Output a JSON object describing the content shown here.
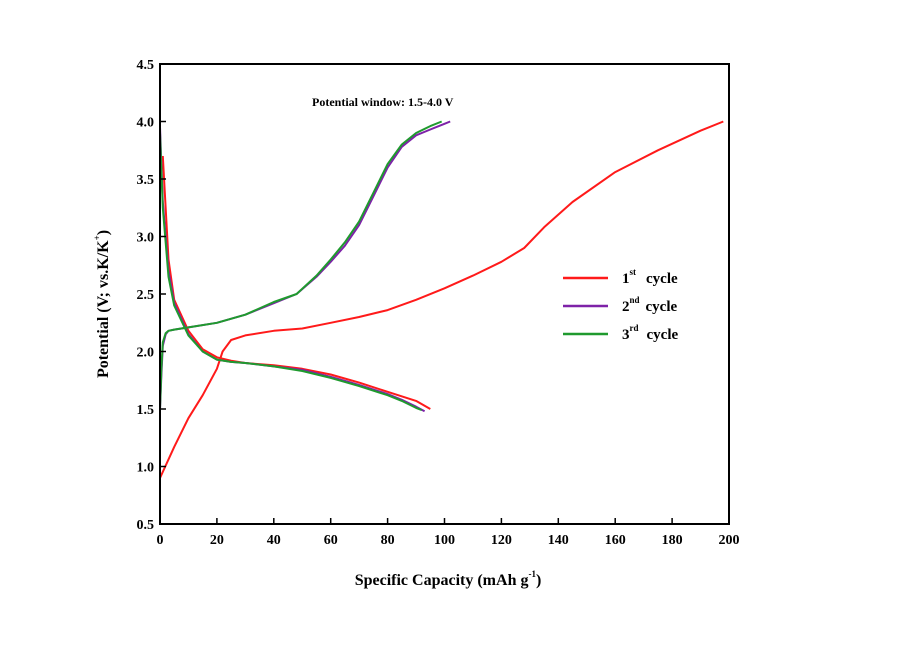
{
  "chart_data": {
    "type": "line",
    "xlabel": "Specific Capacity (mAh g",
    "xlabel_sup": "-1",
    "xlabel_tail": ")",
    "ylabel": "Potential (V; vs.K/K",
    "ylabel_sup": "+",
    "ylabel_tail": ")",
    "annotation": "Potential window: 1.5-4.0 V",
    "xlim": [
      0,
      200
    ],
    "ylim": [
      0.5,
      4.5
    ],
    "xticks": [
      0,
      20,
      40,
      60,
      80,
      100,
      120,
      140,
      160,
      180,
      200
    ],
    "xtick_labels": [
      "0",
      "20",
      "40",
      "60",
      "80",
      "100",
      "120",
      "140",
      "160",
      "180",
      "200"
    ],
    "yticks": [
      0.5,
      1.0,
      1.5,
      2.0,
      2.5,
      3.0,
      3.5,
      4.0,
      4.5
    ],
    "ytick_labels": [
      "0.5",
      "1.0",
      "1.5",
      "2.0",
      "2.5",
      "3.0",
      "3.5",
      "4.0",
      "4.5"
    ],
    "legend_position": "right",
    "series": [
      {
        "name": "1st cycle",
        "legend_main": "1",
        "legend_sup": "st",
        "legend_tail": "cycle",
        "color": "#ff1a1a",
        "segments": [
          {
            "x": [
              0,
              5,
              10,
              15,
              20,
              22,
              25,
              30,
              40,
              50,
              60,
              70,
              80,
              90,
              100,
              110,
              120,
              128,
              135,
              145,
              160,
              175,
              190,
              198
            ],
            "y": [
              0.9,
              1.17,
              1.42,
              1.62,
              1.85,
              2.0,
              2.1,
              2.14,
              2.18,
              2.2,
              2.25,
              2.3,
              2.36,
              2.45,
              2.55,
              2.66,
              2.78,
              2.9,
              3.08,
              3.3,
              3.56,
              3.75,
              3.92,
              4.0
            ]
          },
          {
            "x": [
              1,
              3,
              5,
              10,
              15,
              20,
              25,
              30,
              40,
              50,
              60,
              70,
              80,
              90,
              95
            ],
            "y": [
              3.7,
              2.8,
              2.45,
              2.18,
              2.02,
              1.95,
              1.92,
              1.9,
              1.88,
              1.85,
              1.8,
              1.73,
              1.65,
              1.57,
              1.5
            ]
          }
        ]
      },
      {
        "name": "2nd cycle",
        "legend_main": "2",
        "legend_sup": "nd",
        "legend_tail": "cycle",
        "color": "#7e22a8",
        "segments": [
          {
            "x": [
              0,
              0.5,
              1,
              2,
              3,
              5,
              10,
              20,
              30,
              40,
              48,
              55,
              60,
              65,
              70,
              75,
              80,
              85,
              90,
              95,
              100,
              102
            ],
            "y": [
              1.5,
              1.8,
              2.05,
              2.15,
              2.18,
              2.19,
              2.21,
              2.25,
              2.32,
              2.42,
              2.5,
              2.65,
              2.78,
              2.92,
              3.1,
              3.35,
              3.6,
              3.78,
              3.88,
              3.93,
              3.98,
              4.0
            ]
          },
          {
            "x": [
              0,
              1,
              3,
              5,
              10,
              15,
              20,
              25,
              30,
              40,
              50,
              60,
              70,
              80,
              85,
              90,
              93
            ],
            "y": [
              3.95,
              3.3,
              2.7,
              2.42,
              2.15,
              2.0,
              1.93,
              1.91,
              1.9,
              1.87,
              1.84,
              1.78,
              1.71,
              1.63,
              1.58,
              1.52,
              1.48
            ]
          }
        ]
      },
      {
        "name": "3rd cycle",
        "legend_main": "3",
        "legend_sup": "rd",
        "legend_tail": "cycle",
        "color": "#1f9a2e",
        "segments": [
          {
            "x": [
              0,
              0.5,
              1,
              2,
              3,
              5,
              10,
              20,
              30,
              40,
              48,
              55,
              60,
              65,
              70,
              75,
              80,
              85,
              90,
              95,
              99
            ],
            "y": [
              1.5,
              1.85,
              2.08,
              2.16,
              2.18,
              2.19,
              2.21,
              2.25,
              2.32,
              2.43,
              2.5,
              2.66,
              2.8,
              2.95,
              3.13,
              3.38,
              3.63,
              3.8,
              3.9,
              3.96,
              4.0
            ]
          },
          {
            "x": [
              0,
              1,
              3,
              5,
              10,
              15,
              20,
              25,
              30,
              40,
              50,
              60,
              70,
              80,
              85,
              90,
              92
            ],
            "y": [
              3.9,
              3.25,
              2.65,
              2.4,
              2.14,
              2.0,
              1.93,
              1.91,
              1.9,
              1.87,
              1.83,
              1.77,
              1.7,
              1.62,
              1.57,
              1.51,
              1.49
            ]
          }
        ]
      }
    ]
  }
}
